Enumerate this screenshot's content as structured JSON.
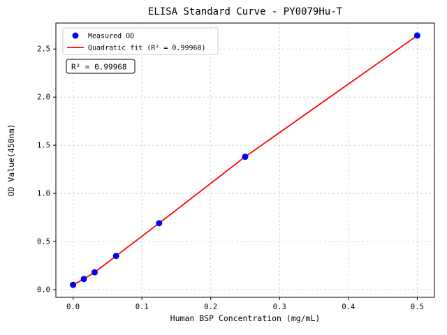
{
  "chart_data": {
    "type": "scatter",
    "title": "ELISA Standard Curve - PY0079Hu-T",
    "xlabel": "Human BSP Concentration (mg/mL)",
    "ylabel": "OD Value(450nm)",
    "xlim": [
      -0.025,
      0.525
    ],
    "ylim": [
      -0.08,
      2.77
    ],
    "xticks": [
      0.0,
      0.1,
      0.2,
      0.3,
      0.4,
      0.5
    ],
    "yticks": [
      0.0,
      0.5,
      1.0,
      1.5,
      2.0,
      2.5
    ],
    "grid": true,
    "grid_style": "dashed",
    "grid_color": "#cccccc",
    "legend_position": "upper-left",
    "annotation": "R² = 0.99968",
    "series": [
      {
        "name": "Measured OD",
        "type": "scatter",
        "color": "#0000ee",
        "marker": "circle",
        "x": [
          0.0,
          0.0156,
          0.0313,
          0.0625,
          0.125,
          0.25,
          0.5
        ],
        "y": [
          0.05,
          0.11,
          0.18,
          0.35,
          0.69,
          1.38,
          2.64
        ]
      },
      {
        "name": "Quadratic fit (R² = 0.99968)",
        "type": "line",
        "color": "#ff0000",
        "x": [
          0.0,
          0.0156,
          0.0313,
          0.0625,
          0.125,
          0.25,
          0.5
        ],
        "y": [
          0.05,
          0.11,
          0.18,
          0.35,
          0.69,
          1.38,
          2.64
        ]
      }
    ]
  }
}
